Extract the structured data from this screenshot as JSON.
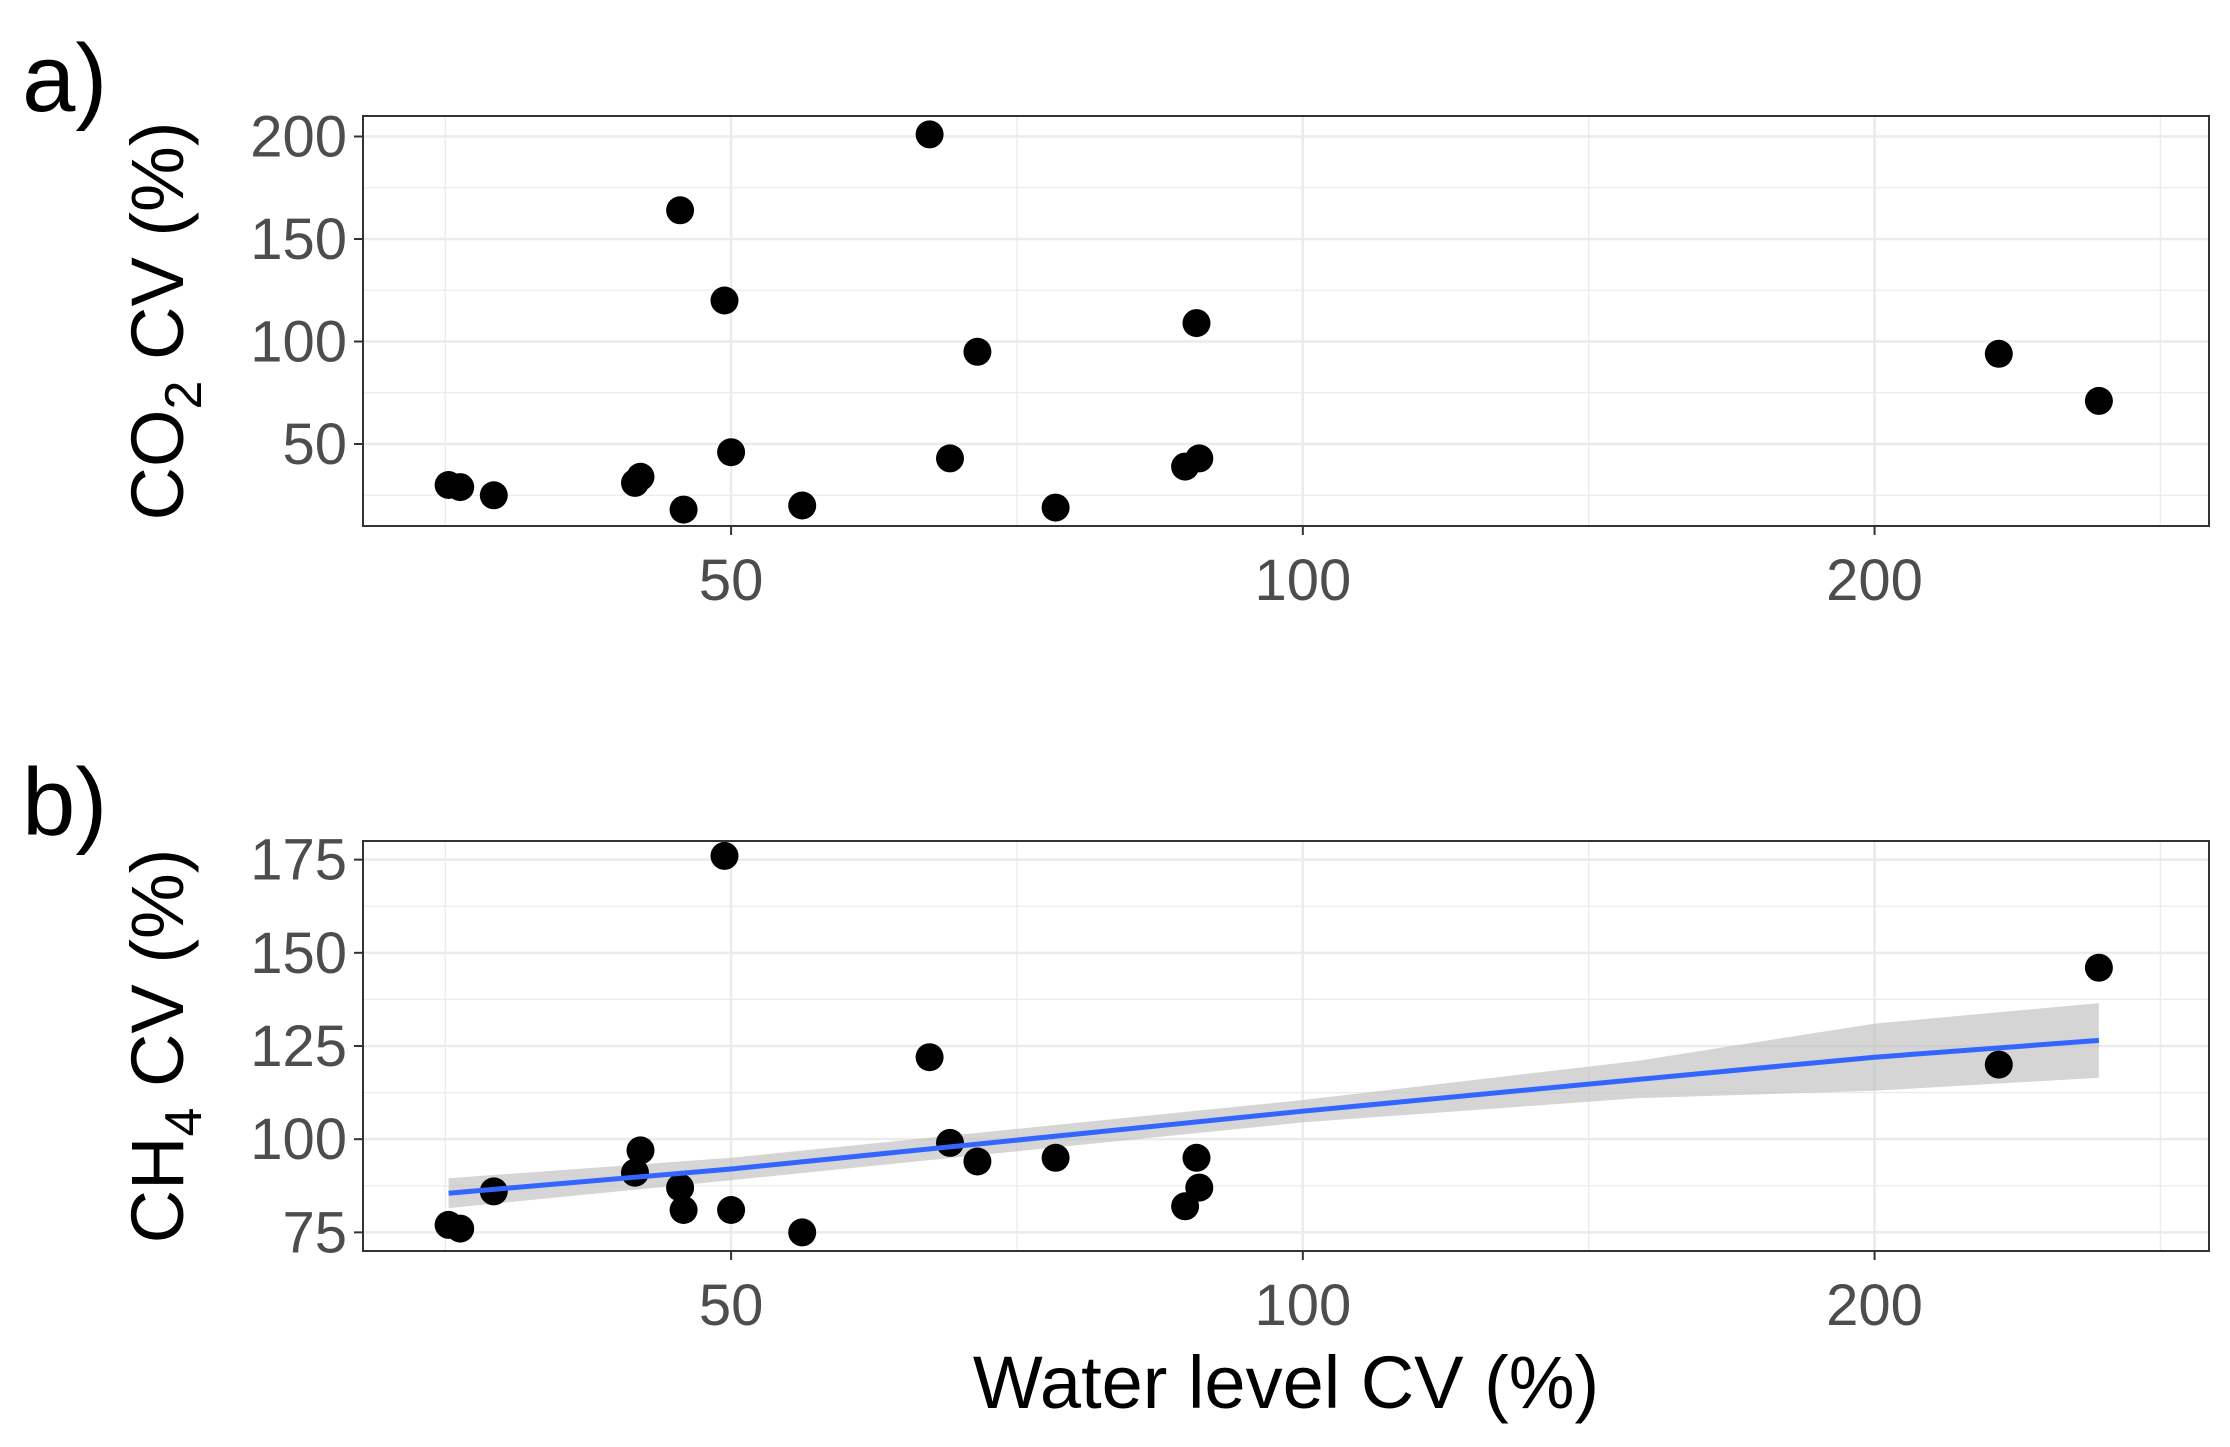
{
  "colors": {
    "points": "#000000",
    "fit_line": "#3366ff",
    "ribbon": "#bfbfbf",
    "grid": "#ebebeb",
    "axis_text": "#4d4d4d"
  },
  "chart_data": [
    {
      "panel_label": "a)",
      "type": "scatter",
      "xlabel": "",
      "ylabel": {
        "pre": "CO",
        "sub": "2",
        "post": " CV (%)"
      },
      "x_scale": "log10",
      "x_ticks": [
        50,
        100,
        200
      ],
      "x_tick_labels": [
        "50",
        "100",
        "200"
      ],
      "xlim": [
        32,
        300
      ],
      "y_ticks": [
        50,
        100,
        150,
        200
      ],
      "y_tick_labels": [
        "50",
        "100",
        "150",
        "200"
      ],
      "ylim": [
        10,
        210
      ],
      "grid": true,
      "points": [
        {
          "x": 35.5,
          "y": 30
        },
        {
          "x": 36.0,
          "y": 29
        },
        {
          "x": 37.5,
          "y": 25
        },
        {
          "x": 44.5,
          "y": 31
        },
        {
          "x": 44.8,
          "y": 34
        },
        {
          "x": 47.0,
          "y": 164
        },
        {
          "x": 47.2,
          "y": 18
        },
        {
          "x": 49.6,
          "y": 120
        },
        {
          "x": 50.0,
          "y": 46
        },
        {
          "x": 54.5,
          "y": 20
        },
        {
          "x": 63.6,
          "y": 201
        },
        {
          "x": 65.2,
          "y": 43
        },
        {
          "x": 67.4,
          "y": 95
        },
        {
          "x": 74.1,
          "y": 19
        },
        {
          "x": 86.7,
          "y": 39
        },
        {
          "x": 87.9,
          "y": 109
        },
        {
          "x": 88.2,
          "y": 43
        },
        {
          "x": 232.5,
          "y": 94
        },
        {
          "x": 262.5,
          "y": 71
        }
      ]
    },
    {
      "panel_label": "b)",
      "type": "scatter",
      "xlabel": "Water level CV (%)",
      "ylabel": {
        "pre": "CH",
        "sub": "4",
        "post": " CV (%)"
      },
      "x_scale": "log10",
      "x_ticks": [
        50,
        100,
        200
      ],
      "x_tick_labels": [
        "50",
        "100",
        "200"
      ],
      "xlim": [
        32,
        300
      ],
      "y_ticks": [
        75,
        100,
        125,
        150,
        175
      ],
      "y_tick_labels": [
        "75",
        "100",
        "125",
        "150",
        "175"
      ],
      "ylim": [
        70,
        180
      ],
      "grid": true,
      "points": [
        {
          "x": 35.5,
          "y": 77
        },
        {
          "x": 36.0,
          "y": 76
        },
        {
          "x": 37.5,
          "y": 86
        },
        {
          "x": 44.5,
          "y": 91
        },
        {
          "x": 44.8,
          "y": 97
        },
        {
          "x": 47.0,
          "y": 87
        },
        {
          "x": 47.2,
          "y": 81
        },
        {
          "x": 49.6,
          "y": 176
        },
        {
          "x": 50.0,
          "y": 81
        },
        {
          "x": 54.5,
          "y": 75
        },
        {
          "x": 63.6,
          "y": 122
        },
        {
          "x": 65.2,
          "y": 99
        },
        {
          "x": 67.4,
          "y": 94
        },
        {
          "x": 74.1,
          "y": 95
        },
        {
          "x": 86.7,
          "y": 82
        },
        {
          "x": 87.9,
          "y": 95
        },
        {
          "x": 88.2,
          "y": 87
        },
        {
          "x": 232.5,
          "y": 120
        },
        {
          "x": 262.5,
          "y": 146
        }
      ],
      "fit": {
        "x": [
          35.5,
          50,
          100,
          150,
          200,
          262.5
        ],
        "y": [
          85.5,
          92,
          107.5,
          116,
          122,
          126.5
        ],
        "lower": [
          81.5,
          89,
          104.5,
          111,
          113,
          116.5
        ],
        "upper": [
          89.5,
          95,
          110.5,
          121,
          131,
          136.5
        ]
      }
    }
  ]
}
